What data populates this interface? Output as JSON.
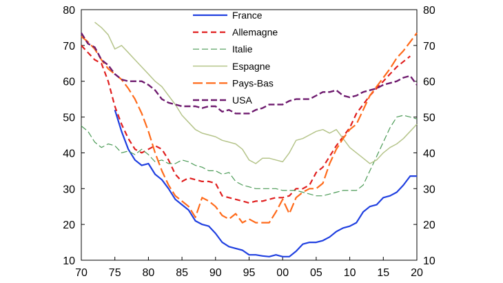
{
  "chart_data": {
    "type": "line",
    "title": "",
    "xlabel": "",
    "ylabel": "",
    "xlim": [
      1970,
      2020
    ],
    "ylim": [
      10,
      80
    ],
    "x_ticks": [
      1970,
      1975,
      1980,
      1985,
      1990,
      1995,
      2000,
      2005,
      2010,
      2015,
      2020
    ],
    "x_tick_labels": [
      "70",
      "75",
      "80",
      "85",
      "90",
      "95",
      "00",
      "05",
      "10",
      "15",
      "20"
    ],
    "y_ticks": [
      10,
      20,
      30,
      40,
      50,
      60,
      70,
      80
    ],
    "y_tick_labels": [
      "10",
      "20",
      "30",
      "40",
      "50",
      "60",
      "70",
      "80"
    ],
    "grid": false,
    "legend_position": "top-center",
    "series": [
      {
        "name": "France",
        "color": "#1f3fe0",
        "dash": "solid",
        "width": 2.2,
        "points": [
          [
            1975,
            52
          ],
          [
            1976,
            46
          ],
          [
            1977,
            41
          ],
          [
            1978,
            38
          ],
          [
            1979,
            36.5
          ],
          [
            1980,
            37
          ],
          [
            1981,
            34
          ],
          [
            1982,
            32.5
          ],
          [
            1983,
            30
          ],
          [
            1984,
            27
          ],
          [
            1985,
            25.5
          ],
          [
            1986,
            24
          ],
          [
            1987,
            21
          ],
          [
            1988,
            20
          ],
          [
            1989,
            19.5
          ],
          [
            1990,
            17.5
          ],
          [
            1991,
            15
          ],
          [
            1992,
            13.8
          ],
          [
            1993,
            13.3
          ],
          [
            1994,
            12.8
          ],
          [
            1995,
            11.5
          ],
          [
            1996,
            11.5
          ],
          [
            1997,
            11.2
          ],
          [
            1998,
            11
          ],
          [
            1999,
            11.5
          ],
          [
            2000,
            11
          ],
          [
            2001,
            11
          ],
          [
            2002,
            12.5
          ],
          [
            2003,
            14.5
          ],
          [
            2004,
            15
          ],
          [
            2005,
            15
          ],
          [
            2006,
            15.5
          ],
          [
            2007,
            16.5
          ],
          [
            2008,
            18
          ],
          [
            2009,
            19
          ],
          [
            2010,
            19.5
          ],
          [
            2011,
            20.5
          ],
          [
            2012,
            23.5
          ],
          [
            2013,
            25
          ],
          [
            2014,
            25.5
          ],
          [
            2015,
            27.5
          ],
          [
            2016,
            28
          ],
          [
            2017,
            29
          ],
          [
            2018,
            31
          ],
          [
            2019,
            33.5
          ],
          [
            2020,
            33.5
          ]
        ]
      },
      {
        "name": "Allemagne",
        "color": "#e01f1f",
        "dash": "8,5",
        "width": 2.2,
        "points": [
          [
            1970,
            70
          ],
          [
            1971,
            68
          ],
          [
            1972,
            66
          ],
          [
            1973,
            65
          ],
          [
            1974,
            60
          ],
          [
            1975,
            53
          ],
          [
            1976,
            48
          ],
          [
            1977,
            44
          ],
          [
            1978,
            41
          ],
          [
            1979,
            40
          ],
          [
            1980,
            41
          ],
          [
            1981,
            42
          ],
          [
            1982,
            41
          ],
          [
            1983,
            38
          ],
          [
            1984,
            34
          ],
          [
            1985,
            32
          ],
          [
            1986,
            33
          ],
          [
            1987,
            32.5
          ],
          [
            1988,
            32
          ],
          [
            1989,
            32
          ],
          [
            1990,
            31.5
          ],
          [
            1991,
            28
          ],
          [
            1992,
            27.5
          ],
          [
            1993,
            27
          ],
          [
            1994,
            26.5
          ],
          [
            1995,
            26
          ],
          [
            1996,
            26.5
          ],
          [
            1997,
            26.5
          ],
          [
            1998,
            27
          ],
          [
            1999,
            27.5
          ],
          [
            2000,
            27.5
          ],
          [
            2001,
            28
          ],
          [
            2002,
            30
          ],
          [
            2003,
            30
          ],
          [
            2004,
            31
          ],
          [
            2005,
            34.5
          ],
          [
            2006,
            36
          ],
          [
            2007,
            39
          ],
          [
            2008,
            42
          ],
          [
            2009,
            44.5
          ],
          [
            2010,
            47
          ],
          [
            2011,
            51
          ],
          [
            2012,
            53.5
          ],
          [
            2013,
            56
          ],
          [
            2014,
            58
          ],
          [
            2015,
            60
          ],
          [
            2016,
            62
          ],
          [
            2017,
            64
          ],
          [
            2018,
            65.5
          ],
          [
            2019,
            67
          ]
        ]
      },
      {
        "name": "Italie",
        "color": "#4a9a55",
        "dash": "9,4",
        "width": 1.2,
        "points": [
          [
            1970,
            47.5
          ],
          [
            1971,
            46
          ],
          [
            1972,
            43
          ],
          [
            1973,
            41.5
          ],
          [
            1974,
            42.5
          ],
          [
            1975,
            42
          ],
          [
            1976,
            40
          ],
          [
            1977,
            40.5
          ],
          [
            1978,
            39.5
          ],
          [
            1979,
            41
          ],
          [
            1980,
            39.5
          ],
          [
            1981,
            37.5
          ],
          [
            1982,
            38
          ],
          [
            1983,
            37
          ],
          [
            1984,
            37
          ],
          [
            1985,
            38
          ],
          [
            1986,
            37.5
          ],
          [
            1987,
            36.5
          ],
          [
            1988,
            36
          ],
          [
            1989,
            35
          ],
          [
            1990,
            35
          ],
          [
            1991,
            34
          ],
          [
            1992,
            34.5
          ],
          [
            1993,
            32
          ],
          [
            1994,
            31
          ],
          [
            1995,
            30.5
          ],
          [
            1996,
            30
          ],
          [
            1997,
            30
          ],
          [
            1998,
            30
          ],
          [
            1999,
            30
          ],
          [
            2000,
            29.5
          ],
          [
            2001,
            29.5
          ],
          [
            2002,
            29.5
          ],
          [
            2003,
            29
          ],
          [
            2004,
            28.5
          ],
          [
            2005,
            28
          ],
          [
            2006,
            28
          ],
          [
            2007,
            28.5
          ],
          [
            2008,
            29
          ],
          [
            2009,
            29.5
          ],
          [
            2010,
            29.5
          ],
          [
            2011,
            29.5
          ],
          [
            2012,
            31
          ],
          [
            2013,
            35
          ],
          [
            2014,
            39
          ],
          [
            2015,
            43
          ],
          [
            2016,
            47
          ],
          [
            2017,
            50
          ],
          [
            2018,
            50.5
          ],
          [
            2019,
            50
          ],
          [
            2020,
            49.5
          ]
        ]
      },
      {
        "name": "Espagne",
        "color": "#b5c48a",
        "dash": "solid",
        "width": 1.5,
        "points": [
          [
            1972,
            76.5
          ],
          [
            1973,
            75
          ],
          [
            1974,
            73
          ],
          [
            1975,
            69
          ],
          [
            1976,
            70
          ],
          [
            1977,
            68
          ],
          [
            1978,
            66
          ],
          [
            1979,
            64
          ],
          [
            1980,
            62
          ],
          [
            1981,
            60
          ],
          [
            1982,
            58.5
          ],
          [
            1983,
            56
          ],
          [
            1984,
            53.5
          ],
          [
            1985,
            50.5
          ],
          [
            1986,
            48.5
          ],
          [
            1987,
            46.5
          ],
          [
            1988,
            45.5
          ],
          [
            1989,
            45
          ],
          [
            1990,
            44.5
          ],
          [
            1991,
            43.5
          ],
          [
            1992,
            43
          ],
          [
            1993,
            42.5
          ],
          [
            1994,
            41
          ],
          [
            1995,
            38
          ],
          [
            1996,
            37
          ],
          [
            1997,
            38.5
          ],
          [
            1998,
            38.5
          ],
          [
            1999,
            38
          ],
          [
            2000,
            37.5
          ],
          [
            2001,
            40
          ],
          [
            2002,
            43.5
          ],
          [
            2003,
            44
          ],
          [
            2004,
            45
          ],
          [
            2005,
            46
          ],
          [
            2006,
            46.5
          ],
          [
            2007,
            45.5
          ],
          [
            2008,
            46.5
          ],
          [
            2009,
            44
          ],
          [
            2010,
            41.5
          ],
          [
            2011,
            40
          ],
          [
            2012,
            38.5
          ],
          [
            2013,
            37
          ],
          [
            2014,
            38
          ],
          [
            2015,
            40
          ],
          [
            2016,
            41.5
          ],
          [
            2017,
            42.5
          ],
          [
            2018,
            44
          ],
          [
            2019,
            46
          ],
          [
            2020,
            48
          ]
        ]
      },
      {
        "name": "Pays-Bas",
        "color": "#ff6a1a",
        "dash": "14,5",
        "width": 2.2,
        "points": [
          [
            1970,
            72.5
          ],
          [
            1971,
            71
          ],
          [
            1972,
            69
          ],
          [
            1973,
            66
          ],
          [
            1974,
            63.5
          ],
          [
            1975,
            62
          ],
          [
            1976,
            60.5
          ],
          [
            1977,
            58
          ],
          [
            1978,
            55
          ],
          [
            1979,
            51
          ],
          [
            1980,
            46
          ],
          [
            1981,
            40
          ],
          [
            1982,
            35
          ],
          [
            1983,
            31
          ],
          [
            1984,
            28
          ],
          [
            1985,
            26.5
          ],
          [
            1986,
            25
          ],
          [
            1987,
            22
          ],
          [
            1988,
            27.5
          ],
          [
            1989,
            26.5
          ],
          [
            1990,
            25
          ],
          [
            1991,
            22.5
          ],
          [
            1992,
            21.5
          ],
          [
            1993,
            23
          ],
          [
            1994,
            20.5
          ],
          [
            1995,
            21.5
          ],
          [
            1996,
            20.5
          ],
          [
            1997,
            20.5
          ],
          [
            1998,
            20.5
          ],
          [
            1999,
            23.5
          ],
          [
            2000,
            27
          ],
          [
            2001,
            23
          ],
          [
            2002,
            27.5
          ],
          [
            2003,
            29
          ],
          [
            2004,
            30
          ],
          [
            2005,
            30
          ],
          [
            2006,
            31.5
          ],
          [
            2007,
            37
          ],
          [
            2008,
            41
          ],
          [
            2009,
            44
          ],
          [
            2010,
            46.5
          ],
          [
            2011,
            48
          ],
          [
            2012,
            52
          ],
          [
            2013,
            56
          ],
          [
            2014,
            58.5
          ],
          [
            2015,
            61
          ],
          [
            2016,
            63.5
          ],
          [
            2017,
            66.5
          ],
          [
            2018,
            68.5
          ],
          [
            2019,
            71
          ],
          [
            2020,
            73.5
          ]
        ]
      },
      {
        "name": "USA",
        "color": "#6e1a6e",
        "dash": "9,4",
        "width": 2.4,
        "points": [
          [
            1970,
            73.5
          ],
          [
            1971,
            70.5
          ],
          [
            1972,
            69.5
          ],
          [
            1973,
            66
          ],
          [
            1974,
            64.5
          ],
          [
            1975,
            62
          ],
          [
            1976,
            60.5
          ],
          [
            1977,
            60
          ],
          [
            1978,
            60
          ],
          [
            1979,
            60
          ],
          [
            1980,
            59
          ],
          [
            1981,
            57.5
          ],
          [
            1982,
            55
          ],
          [
            1983,
            54
          ],
          [
            1984,
            53.5
          ],
          [
            1985,
            53
          ],
          [
            1986,
            53
          ],
          [
            1987,
            53
          ],
          [
            1988,
            52.5
          ],
          [
            1989,
            53
          ],
          [
            1990,
            53
          ],
          [
            1991,
            51.5
          ],
          [
            1992,
            52
          ],
          [
            1993,
            51
          ],
          [
            1994,
            51
          ],
          [
            1995,
            51
          ],
          [
            1996,
            52
          ],
          [
            1997,
            52.5
          ],
          [
            1998,
            53.5
          ],
          [
            1999,
            53.5
          ],
          [
            2000,
            53.5
          ],
          [
            2001,
            54.5
          ],
          [
            2002,
            55
          ],
          [
            2003,
            55
          ],
          [
            2004,
            55
          ],
          [
            2005,
            56
          ],
          [
            2006,
            57
          ],
          [
            2007,
            57
          ],
          [
            2008,
            57.5
          ],
          [
            2009,
            56
          ],
          [
            2010,
            55.5
          ],
          [
            2011,
            56
          ],
          [
            2012,
            57
          ],
          [
            2013,
            57.5
          ],
          [
            2014,
            58
          ],
          [
            2015,
            59
          ],
          [
            2016,
            59.5
          ],
          [
            2017,
            60
          ],
          [
            2018,
            61
          ],
          [
            2019,
            61.5
          ],
          [
            2020,
            59
          ]
        ]
      }
    ]
  }
}
